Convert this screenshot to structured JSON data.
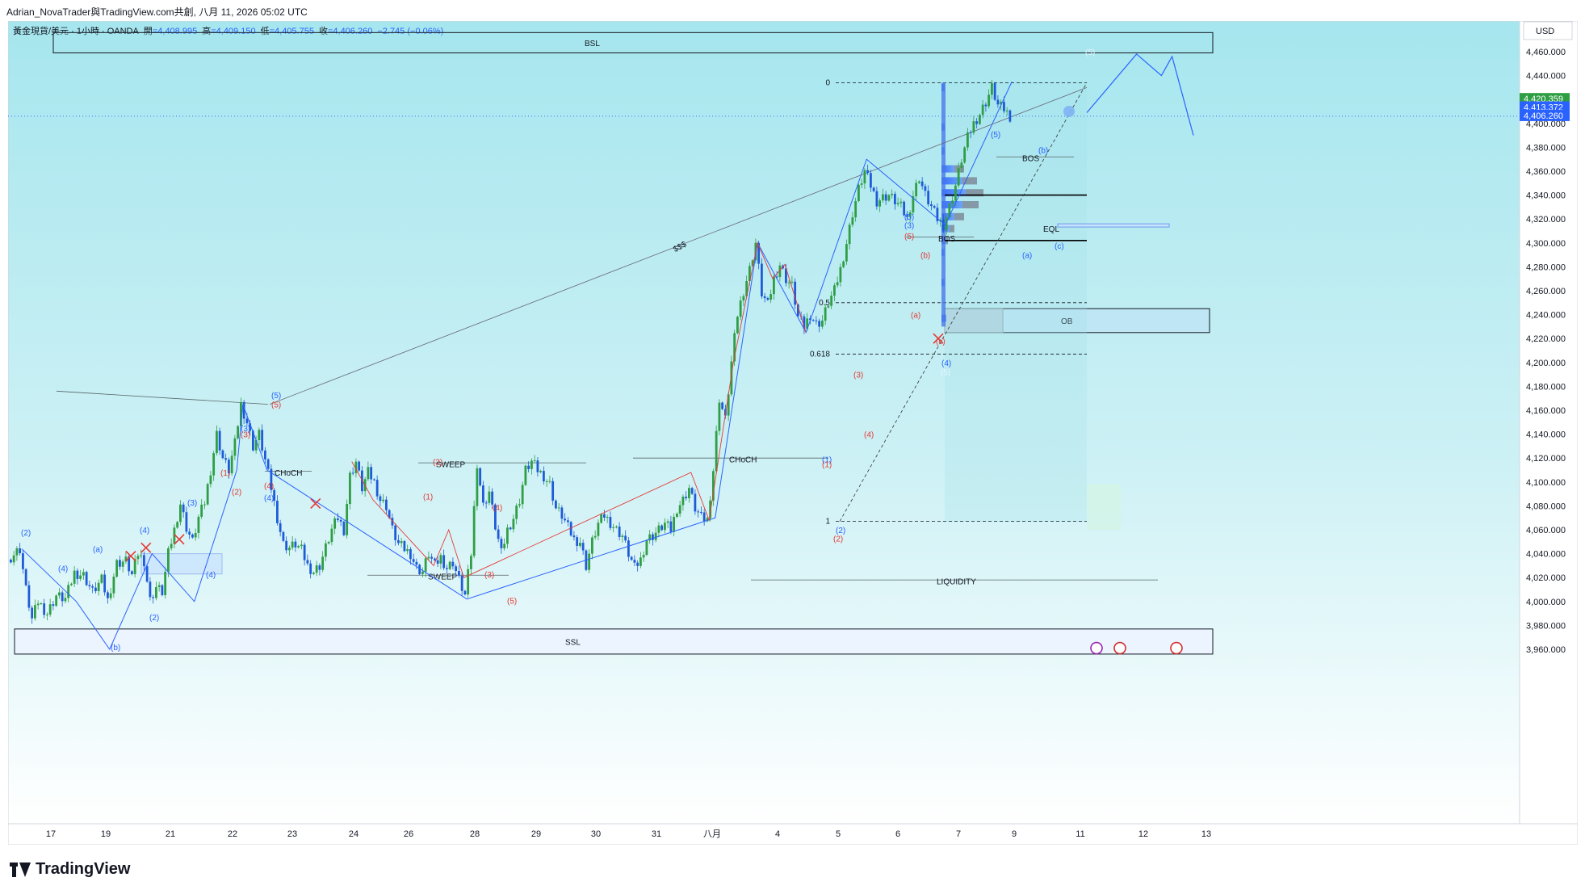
{
  "caption": "Adrian_NovaTrader與TradingView.com共創, 八月 11, 2026 05:02 UTC",
  "legend": {
    "symbol": "黃金現貨/美元 · 1小時 · OANDA",
    "open_label": "開",
    "open": "=4,408.995",
    "high_label": "高",
    "high": "=4,409.150",
    "low_label": "低",
    "low": "=4,405.755",
    "close_label": "收",
    "close": "=4,406.260",
    "change": "−2.745 (−0.06%)"
  },
  "currency": "USD",
  "price_tags": [
    {
      "value": "4,420.359",
      "color": "#2e9e43"
    },
    {
      "value": "4,413.372",
      "color": "#2962ff"
    },
    {
      "value": "4,406.260",
      "color": "#2962ff"
    }
  ],
  "brand": "TradingView",
  "colors": {
    "up": "#26a69a",
    "up_green": "#2f9e44",
    "down": "#1e5bd8",
    "wave_blue": "#2962ff",
    "wave_red": "#e53935",
    "bg_top": "#a6e6ee",
    "bg_bottom": "#ffffff"
  },
  "chart_data": {
    "type": "candlestick",
    "title": "",
    "ylim": [
      3950,
      4475
    ],
    "y_ticks": [
      "4,460.000",
      "4,440.000",
      "4,420.000",
      "4,400.000",
      "4,380.000",
      "4,360.000",
      "4,340.000",
      "4,320.000",
      "4,300.000",
      "4,280.000",
      "4,260.000",
      "4,240.000",
      "4,220.000",
      "4,200.000",
      "4,180.000",
      "4,160.000",
      "4,140.000",
      "4,120.000",
      "4,100.000",
      "4,080.000",
      "4,060.000",
      "4,040.000",
      "4,020.000",
      "4,000.000",
      "3,980.000",
      "3,960.000"
    ],
    "x_labels": [
      "17",
      "19",
      "21",
      "22",
      "23",
      "24",
      "26",
      "28",
      "29",
      "30",
      "31",
      "八月",
      "4",
      "5",
      "6",
      "7",
      "9",
      "11",
      "12",
      "13"
    ],
    "price_path": [
      [
        0,
        4035
      ],
      [
        4,
        4044
      ],
      [
        6,
        4010
      ],
      [
        8,
        3985
      ],
      [
        10,
        4000
      ],
      [
        13,
        3990
      ],
      [
        16,
        4005
      ],
      [
        19,
        4002
      ],
      [
        22,
        4024
      ],
      [
        25,
        4022
      ],
      [
        28,
        4008
      ],
      [
        31,
        4018
      ],
      [
        33,
        4001
      ],
      [
        36,
        4032
      ],
      [
        39,
        4034
      ],
      [
        41,
        4022
      ],
      [
        43,
        4040
      ],
      [
        45,
        4034
      ],
      [
        47,
        4001
      ],
      [
        49,
        4012
      ],
      [
        51,
        4008
      ],
      [
        53,
        4040
      ],
      [
        55,
        4060
      ],
      [
        57,
        4082
      ],
      [
        59,
        4062
      ],
      [
        61,
        4050
      ],
      [
        63,
        4070
      ],
      [
        65,
        4083
      ],
      [
        67,
        4110
      ],
      [
        69,
        4140
      ],
      [
        71,
        4120
      ],
      [
        73,
        4110
      ],
      [
        75,
        4132
      ],
      [
        77,
        4165
      ],
      [
        79,
        4150
      ],
      [
        81,
        4130
      ],
      [
        83,
        4140
      ],
      [
        85,
        4118
      ],
      [
        87,
        4095
      ],
      [
        89,
        4070
      ],
      [
        91,
        4048
      ],
      [
        93,
        4045
      ],
      [
        95,
        4048
      ],
      [
        97,
        4043
      ],
      [
        99,
        4030
      ],
      [
        101,
        4025
      ],
      [
        103,
        4030
      ],
      [
        105,
        4045
      ],
      [
        107,
        4060
      ],
      [
        109,
        4070
      ],
      [
        111,
        4060
      ],
      [
        113,
        4105
      ],
      [
        115,
        4117
      ],
      [
        117,
        4095
      ],
      [
        119,
        4108
      ],
      [
        121,
        4100
      ],
      [
        123,
        4085
      ],
      [
        125,
        4080
      ],
      [
        127,
        4060
      ],
      [
        129,
        4048
      ],
      [
        131,
        4044
      ],
      [
        133,
        4040
      ],
      [
        135,
        4028
      ],
      [
        137,
        4025
      ],
      [
        139,
        4040
      ],
      [
        141,
        4030
      ],
      [
        143,
        4037
      ],
      [
        145,
        4028
      ],
      [
        147,
        4033
      ],
      [
        149,
        4018
      ],
      [
        151,
        4005
      ],
      [
        153,
        4040
      ],
      [
        155,
        4116
      ],
      [
        157,
        4080
      ],
      [
        159,
        4092
      ],
      [
        161,
        4063
      ],
      [
        163,
        4040
      ],
      [
        165,
        4060
      ],
      [
        167,
        4070
      ],
      [
        169,
        4085
      ],
      [
        171,
        4110
      ],
      [
        173,
        4117
      ],
      [
        175,
        4110
      ],
      [
        177,
        4105
      ],
      [
        179,
        4098
      ],
      [
        181,
        4078
      ],
      [
        183,
        4072
      ],
      [
        185,
        4062
      ],
      [
        187,
        4052
      ],
      [
        189,
        4050
      ],
      [
        191,
        4030
      ],
      [
        193,
        4050
      ],
      [
        195,
        4065
      ],
      [
        197,
        4072
      ],
      [
        199,
        4066
      ],
      [
        201,
        4060
      ],
      [
        203,
        4055
      ],
      [
        205,
        4040
      ],
      [
        207,
        4028
      ],
      [
        209,
        4035
      ],
      [
        211,
        4052
      ],
      [
        213,
        4055
      ],
      [
        215,
        4060
      ],
      [
        217,
        4065
      ],
      [
        219,
        4060
      ],
      [
        221,
        4078
      ],
      [
        223,
        4085
      ],
      [
        225,
        4095
      ],
      [
        227,
        4078
      ],
      [
        229,
        4070
      ],
      [
        231,
        4068
      ],
      [
        233,
        4110
      ],
      [
        235,
        4170
      ],
      [
        237,
        4152
      ],
      [
        239,
        4200
      ],
      [
        241,
        4240
      ],
      [
        243,
        4260
      ],
      [
        245,
        4278
      ],
      [
        247,
        4300
      ],
      [
        249,
        4258
      ],
      [
        251,
        4248
      ],
      [
        253,
        4270
      ],
      [
        255,
        4282
      ],
      [
        257,
        4270
      ],
      [
        259,
        4264
      ],
      [
        261,
        4238
      ],
      [
        263,
        4230
      ],
      [
        265,
        4240
      ],
      [
        267,
        4232
      ],
      [
        269,
        4235
      ],
      [
        271,
        4250
      ],
      [
        273,
        4260
      ],
      [
        275,
        4278
      ],
      [
        277,
        4300
      ],
      [
        279,
        4325
      ],
      [
        281,
        4345
      ],
      [
        283,
        4360
      ],
      [
        285,
        4348
      ],
      [
        287,
        4335
      ],
      [
        289,
        4338
      ],
      [
        291,
        4340
      ],
      [
        293,
        4335
      ],
      [
        295,
        4330
      ],
      [
        297,
        4320
      ],
      [
        299,
        4340
      ],
      [
        301,
        4355
      ],
      [
        303,
        4340
      ],
      [
        305,
        4330
      ],
      [
        307,
        4320
      ],
      [
        309,
        4315
      ],
      [
        311,
        4330
      ],
      [
        313,
        4348
      ],
      [
        315,
        4370
      ],
      [
        317,
        4388
      ],
      [
        319,
        4400
      ],
      [
        321,
        4408
      ],
      [
        323,
        4418
      ],
      [
        325,
        4430
      ],
      [
        327,
        4415
      ],
      [
        329,
        4412
      ],
      [
        331,
        4406
      ]
    ],
    "projection": [
      [
        4424,
        4409
      ],
      [
        4452,
        4458
      ],
      [
        4466,
        4440
      ],
      [
        4472,
        4456
      ],
      [
        4484,
        4390
      ]
    ],
    "zones": [
      {
        "label": "BSL",
        "top": 4459,
        "bottom": 4476
      },
      {
        "label": "OB",
        "top": 4245,
        "bottom": 4225
      },
      {
        "label": "SSL",
        "top": 3977,
        "bottom": 3956
      }
    ],
    "fib_levels": [
      {
        "label": "0",
        "value": 4434
      },
      {
        "label": "0.5",
        "value": 4250
      },
      {
        "label": "0.618",
        "value": 4207
      },
      {
        "label": "1",
        "value": 4067
      }
    ],
    "structure_labels": [
      "SWEEP",
      "SWEEP",
      "CHoCH",
      "CHoCH",
      "LIQUIDITY",
      "BOS",
      "BOS",
      "EQL",
      "$$$"
    ],
    "wave_labels_blue": [
      "(2)",
      "(4)",
      "(a)",
      "(b)",
      "(4)",
      "(4)",
      "(2)",
      "(3)",
      "(3)",
      "(5)",
      "(5)",
      "(4)",
      "(1)",
      "(2)",
      "(3)",
      "(5)",
      "(4)",
      "(a)",
      "(b)",
      "(c)",
      "(5)",
      "(5)"
    ],
    "wave_labels_red": [
      "(1)",
      "(2)",
      "(3)",
      "(4)",
      "(5)",
      "(2)",
      "(1)",
      "(4)",
      "(3)",
      "(5)",
      "(1)",
      "(2)",
      "(3)",
      "(4)",
      "(5)",
      "(a)",
      "(b)",
      "(c)"
    ]
  }
}
